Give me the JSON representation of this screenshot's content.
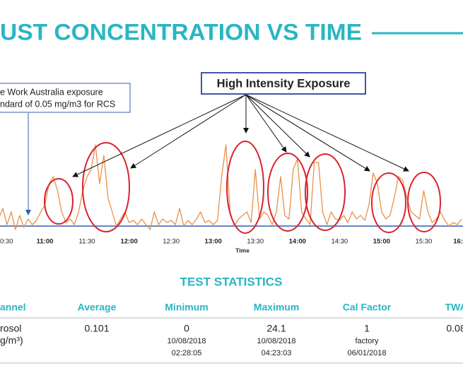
{
  "title": "UST CONCENTRATION VS TIME",
  "chart_data": {
    "type": "line",
    "x": [
      627,
      630,
      633,
      636,
      639,
      642,
      645,
      648,
      651,
      654,
      657,
      660,
      663,
      666,
      669,
      672,
      675,
      678,
      681,
      684,
      687,
      690,
      693,
      696,
      699,
      702,
      705,
      708,
      711,
      714,
      717,
      720,
      723,
      726,
      729,
      732,
      735,
      738,
      741,
      744,
      747,
      750,
      753,
      756,
      759,
      762,
      765,
      768,
      771,
      774,
      777,
      780,
      783,
      786,
      789,
      792,
      795,
      798,
      801,
      804,
      807,
      810,
      813,
      816,
      819,
      822,
      825,
      828,
      831,
      834,
      837,
      840,
      843,
      846,
      849,
      852,
      855,
      858,
      861,
      864,
      867,
      870,
      873,
      876,
      879,
      882,
      885,
      888,
      891,
      894,
      897,
      900,
      903,
      906,
      909,
      912,
      915,
      918,
      921,
      924,
      927,
      930,
      933,
      936,
      939,
      942,
      945,
      948,
      951,
      954,
      957
    ],
    "values": [
      0.1,
      0.175,
      0.06,
      0.15,
      0.025,
      0.125,
      0.04,
      0.1,
      0.06,
      0.09,
      0.15,
      0.2,
      0.35,
      0.4,
      0.3,
      0.15,
      0.075,
      0.1,
      0.06,
      0.15,
      0.3,
      0.4,
      0.45,
      0.625,
      0.35,
      0.55,
      0.25,
      0.15,
      0.05,
      0.1,
      0.15,
      0.075,
      0.09,
      0.06,
      0.1,
      0.06,
      0.025,
      0.15,
      0.06,
      0.1,
      0.075,
      0.09,
      0.06,
      0.175,
      0.05,
      0.09,
      0.06,
      0.1,
      0.15,
      0.075,
      0.09,
      0.06,
      0.09,
      0.4,
      0.625,
      0.15,
      0.05,
      0.1,
      0.125,
      0.15,
      0.075,
      0.45,
      0.1,
      0.15,
      0.125,
      0.06,
      0.15,
      0.4,
      0.125,
      0.1,
      0.45,
      0.525,
      0.15,
      0.1,
      0.06,
      0.5,
      0.5,
      0.15,
      0.06,
      0.15,
      0.1,
      0.09,
      0.125,
      0.075,
      0.15,
      0.1,
      0.125,
      0.09,
      0.2,
      0.425,
      0.35,
      0.15,
      0.1,
      0.125,
      0.25,
      0.4,
      0.375,
      0.25,
      0.15,
      0.125,
      0.1,
      0.3,
      0.15,
      0.075,
      0.1,
      0.15,
      0.09,
      0.05,
      0.075,
      0.06,
      0.1
    ],
    "color": "#e8914a",
    "xlim": [
      628,
      958
    ],
    "ylim": [
      0,
      0.8
    ],
    "xticks": [
      {
        "value": 630,
        "label": "0:30"
      },
      {
        "value": 660,
        "label": "11:00"
      },
      {
        "value": 690,
        "label": "11:30"
      },
      {
        "value": 720,
        "label": "12:00"
      },
      {
        "value": 750,
        "label": "12:30"
      },
      {
        "value": 780,
        "label": "13:00"
      },
      {
        "value": 810,
        "label": "13:30"
      },
      {
        "value": 840,
        "label": "14:00"
      },
      {
        "value": 870,
        "label": "14:30"
      },
      {
        "value": 900,
        "label": "15:00"
      },
      {
        "value": 930,
        "label": "15:30"
      },
      {
        "value": 960,
        "label": "16:"
      }
    ],
    "xlabel": "Time",
    "threshold": 0.05,
    "threshold_color": "#2f5fb3",
    "threshold_note": [
      "e Work Australia exposure",
      "ndard of 0.05 mg/m3 for RCS"
    ],
    "callout": "High Intensity Exposure"
  },
  "table": {
    "title": "TEST STATISTICS",
    "header": [
      "annel",
      "Average",
      "Minimum",
      "Maximum",
      "Cal Factor",
      "TWA"
    ],
    "rows": [
      [
        [
          "rosol",
          "g/m³)"
        ],
        [
          "0.101"
        ],
        [
          "0",
          "10/08/2018",
          "02:28:05"
        ],
        [
          "24.1",
          "10/08/2018",
          "04:23:03"
        ],
        [
          "1",
          "factory",
          "06/01/2018"
        ],
        [
          "0.08"
        ]
      ]
    ]
  }
}
